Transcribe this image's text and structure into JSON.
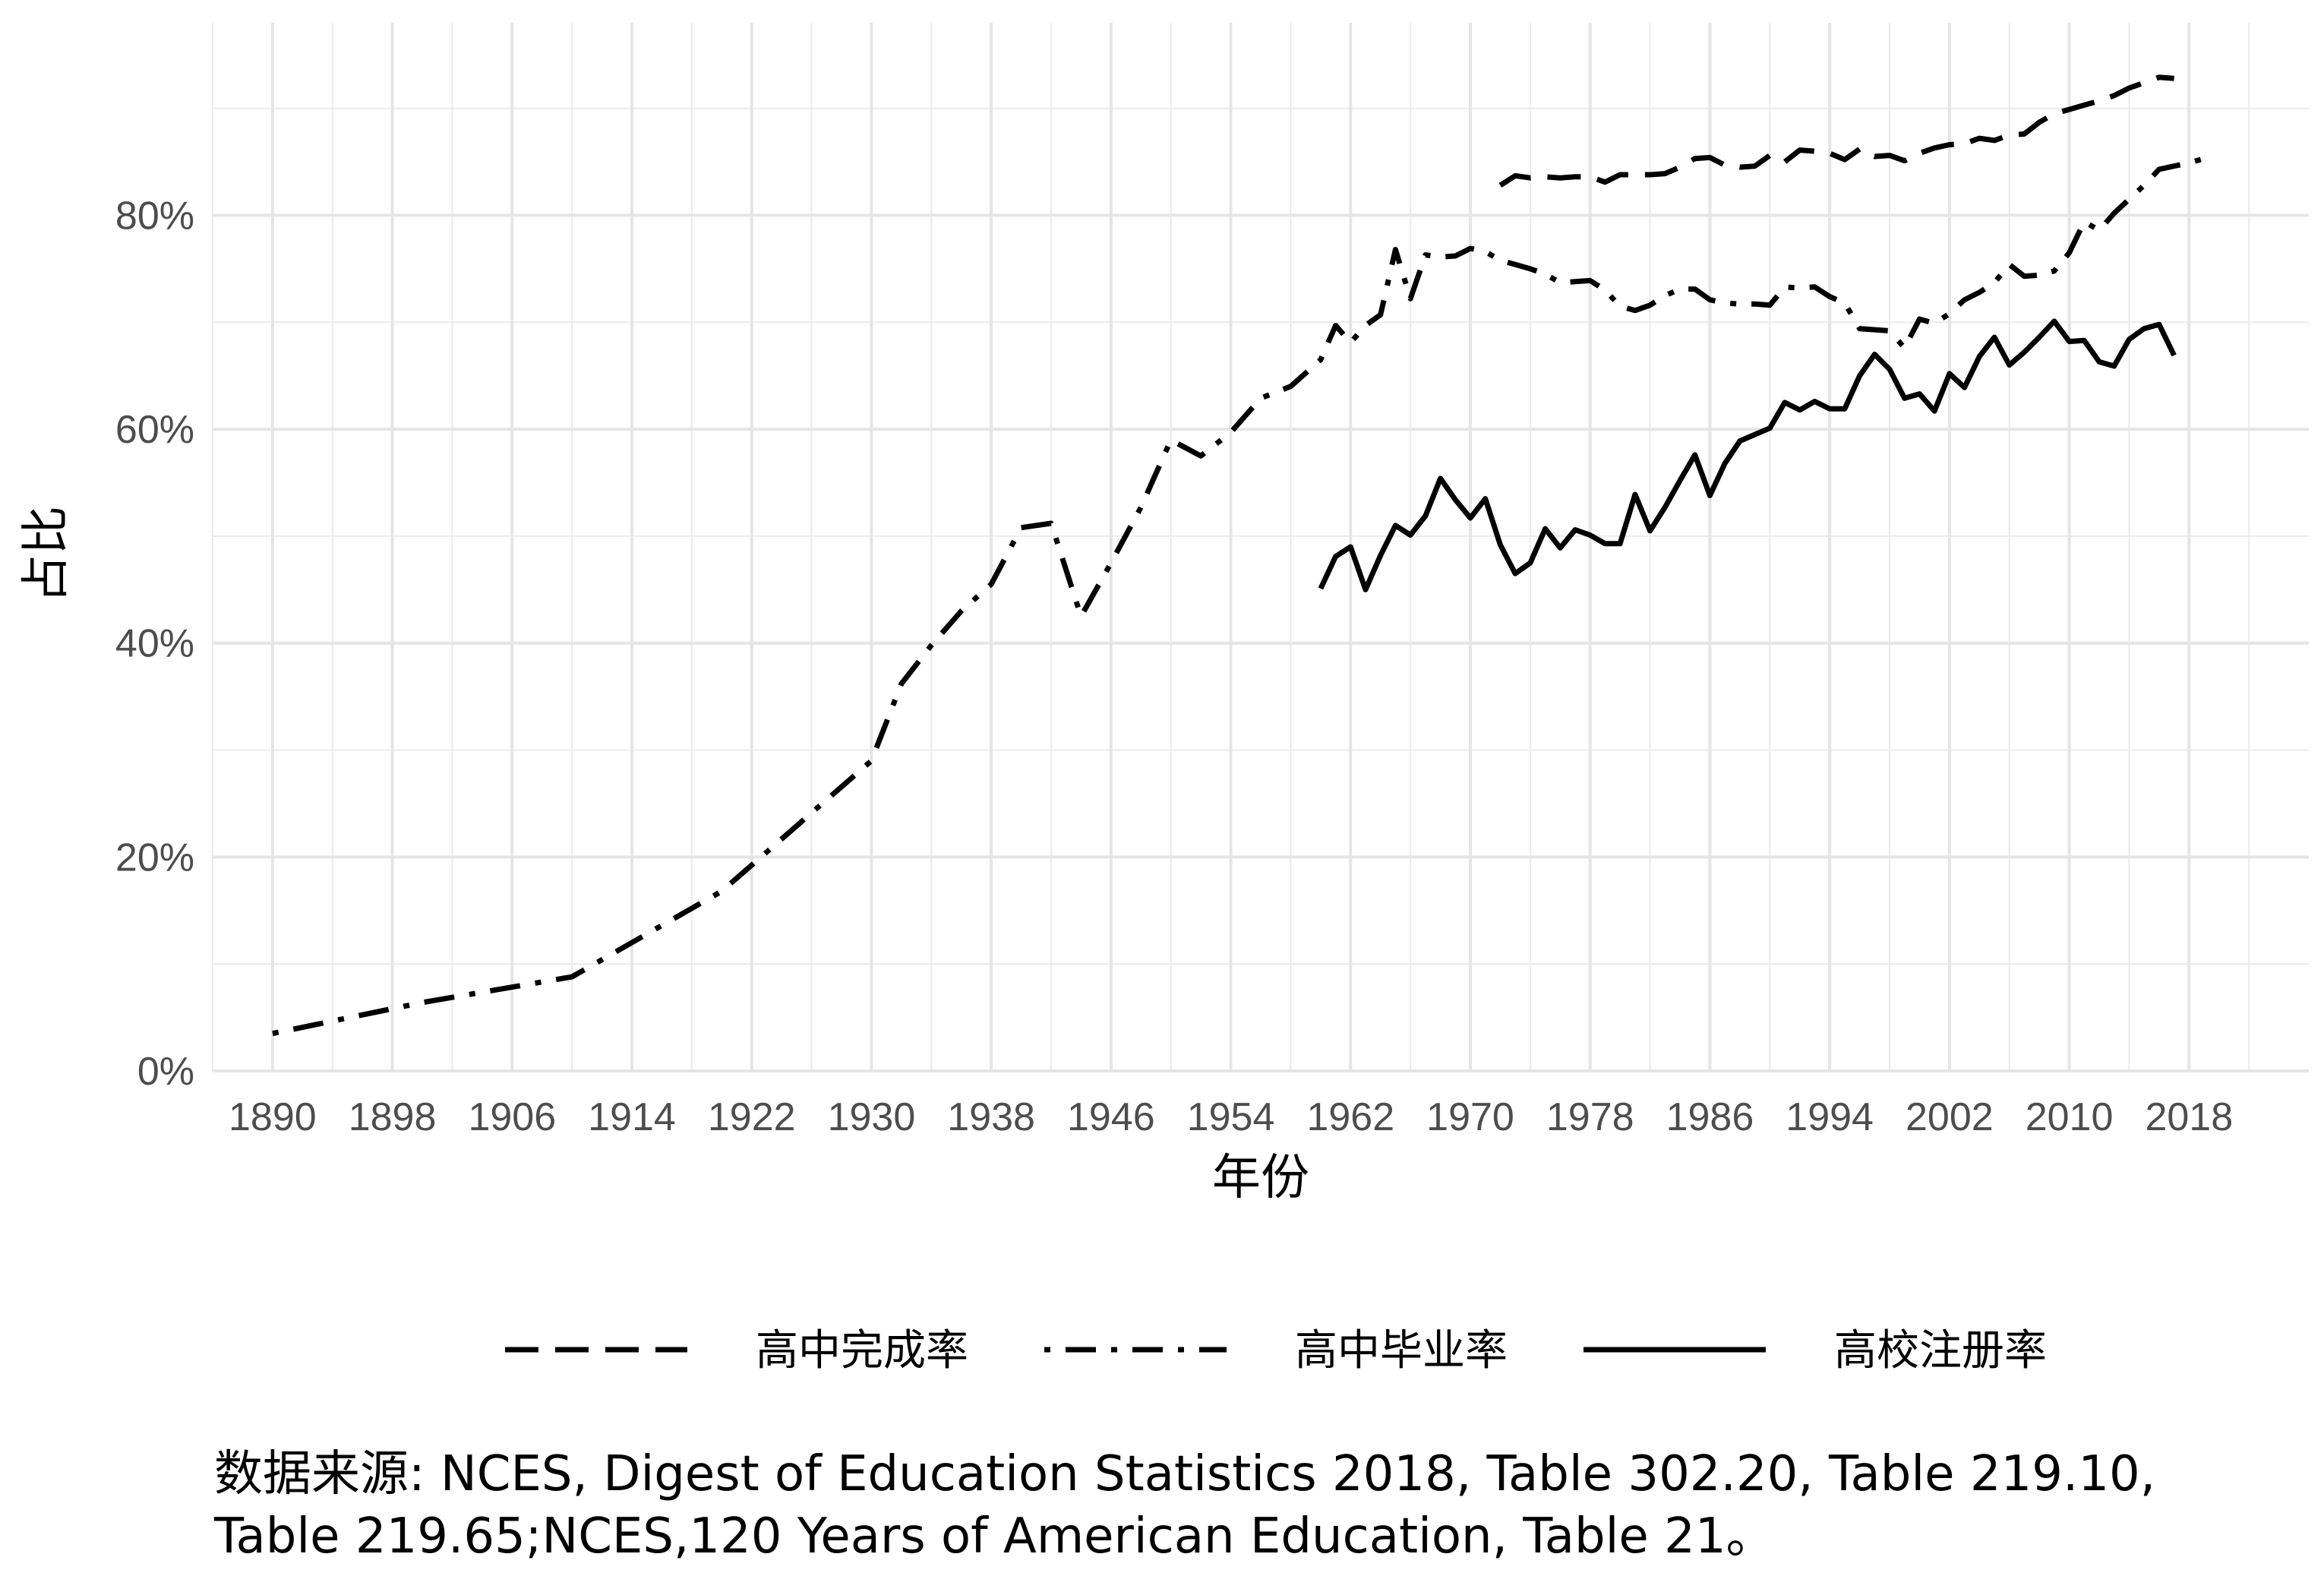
{
  "chart_data": {
    "type": "line",
    "xlabel": "年份",
    "ylabel": "占比",
    "xlim": [
      1886,
      2026
    ],
    "ylim": [
      0,
      0.98
    ],
    "x_ticks": [
      1890,
      1898,
      1906,
      1914,
      1922,
      1930,
      1938,
      1946,
      1954,
      1962,
      1970,
      1978,
      1986,
      1994,
      2002,
      2010,
      2018
    ],
    "y_ticks": [
      0,
      0.2,
      0.4,
      0.6,
      0.8
    ],
    "y_tick_labels": [
      "0%",
      "20%",
      "40%",
      "60%",
      "80%"
    ],
    "grid": true,
    "legend_position": "bottom",
    "series": [
      {
        "name": "高中完成率",
        "linetype": "dashed",
        "color": "#000000",
        "x": [
          1972,
          1973,
          1974,
          1975,
          1976,
          1977,
          1978,
          1979,
          1980,
          1981,
          1982,
          1983,
          1984,
          1985,
          1986,
          1987,
          1988,
          1989,
          1990,
          1991,
          1992,
          1993,
          1994,
          1995,
          1996,
          1997,
          1998,
          1999,
          2000,
          2001,
          2002,
          2003,
          2004,
          2005,
          2006,
          2007,
          2008,
          2009,
          2010,
          2011,
          2012,
          2013,
          2014,
          2015,
          2016,
          2017
        ],
        "y": [
          0.828,
          0.837,
          0.835,
          0.836,
          0.835,
          0.836,
          0.836,
          0.831,
          0.838,
          0.838,
          0.838,
          0.839,
          0.845,
          0.853,
          0.854,
          0.847,
          0.845,
          0.846,
          0.856,
          0.85,
          0.861,
          0.86,
          0.858,
          0.852,
          0.862,
          0.855,
          0.856,
          0.851,
          0.858,
          0.863,
          0.866,
          0.867,
          0.872,
          0.87,
          0.875,
          0.876,
          0.887,
          0.895,
          0.899,
          0.903,
          0.907,
          0.912,
          0.919,
          0.924,
          0.929,
          0.928
        ]
      },
      {
        "name": "高中毕业率",
        "linetype": "dotdash",
        "color": "#000000",
        "x": [
          1890,
          1900,
          1910,
          1920,
          1930,
          1932,
          1934,
          1936,
          1938,
          1940,
          1942,
          1944,
          1946,
          1948,
          1950,
          1952,
          1954,
          1956,
          1958,
          1960,
          1961,
          1962,
          1963,
          1964,
          1965,
          1966,
          1967,
          1968,
          1969,
          1970,
          1971,
          1972,
          1973,
          1974,
          1975,
          1976,
          1977,
          1978,
          1979,
          1980,
          1981,
          1982,
          1983,
          1984,
          1985,
          1986,
          1987,
          1988,
          1989,
          1990,
          1991,
          1992,
          1993,
          1994,
          1995,
          1996,
          1997,
          1998,
          1999,
          2000,
          2001,
          2002,
          2003,
          2004,
          2005,
          2006,
          2007,
          2008,
          2009,
          2010,
          2011,
          2012,
          2013,
          2014,
          2015,
          2016,
          2017,
          2018,
          2019
        ],
        "y": [
          0.035,
          0.064,
          0.088,
          0.168,
          0.29,
          0.362,
          0.398,
          0.43,
          0.455,
          0.508,
          0.512,
          0.425,
          0.475,
          0.527,
          0.59,
          0.575,
          0.597,
          0.629,
          0.64,
          0.665,
          0.697,
          0.681,
          0.697,
          0.707,
          0.768,
          0.722,
          0.763,
          0.761,
          0.762,
          0.769,
          0.766,
          0.758,
          0.754,
          0.75,
          0.745,
          0.737,
          0.738,
          0.739,
          0.73,
          0.715,
          0.711,
          0.716,
          0.725,
          0.731,
          0.731,
          0.721,
          0.718,
          0.717,
          0.717,
          0.716,
          0.733,
          0.732,
          0.733,
          0.724,
          0.718,
          0.694,
          0.693,
          0.692,
          0.676,
          0.703,
          0.699,
          0.708,
          0.721,
          0.728,
          0.737,
          0.754,
          0.743,
          0.744,
          0.748,
          0.765,
          0.794,
          0.786,
          0.802,
          0.815,
          0.828,
          0.843,
          0.846,
          0.849,
          0.853
        ]
      },
      {
        "name": "高校注册率",
        "linetype": "solid",
        "color": "#000000",
        "x": [
          1960,
          1961,
          1962,
          1963,
          1964,
          1965,
          1966,
          1967,
          1968,
          1969,
          1970,
          1971,
          1972,
          1973,
          1974,
          1975,
          1976,
          1977,
          1978,
          1979,
          1980,
          1981,
          1982,
          1983,
          1984,
          1985,
          1986,
          1987,
          1988,
          1989,
          1990,
          1991,
          1992,
          1993,
          1994,
          1995,
          1996,
          1997,
          1998,
          1999,
          2000,
          2001,
          2002,
          2003,
          2004,
          2005,
          2006,
          2007,
          2008,
          2009,
          2010,
          2011,
          2012,
          2013,
          2014,
          2015,
          2016,
          2017
        ],
        "y": [
          0.451,
          0.481,
          0.49,
          0.45,
          0.482,
          0.51,
          0.501,
          0.519,
          0.554,
          0.534,
          0.517,
          0.535,
          0.492,
          0.465,
          0.475,
          0.507,
          0.489,
          0.506,
          0.501,
          0.493,
          0.493,
          0.539,
          0.505,
          0.527,
          0.552,
          0.576,
          0.538,
          0.568,
          0.589,
          0.595,
          0.601,
          0.625,
          0.618,
          0.626,
          0.619,
          0.619,
          0.65,
          0.67,
          0.656,
          0.629,
          0.633,
          0.617,
          0.652,
          0.639,
          0.668,
          0.686,
          0.66,
          0.672,
          0.686,
          0.701,
          0.682,
          0.683,
          0.663,
          0.659,
          0.684,
          0.694,
          0.698,
          0.669
        ]
      }
    ]
  },
  "caption_lines": [
    "数据来源: NCES, Digest of Education Statistics 2018, Table 302.20, Table 219.10,",
    "Table 219.65;NCES,120 Years of American Education, Table 21。"
  ]
}
